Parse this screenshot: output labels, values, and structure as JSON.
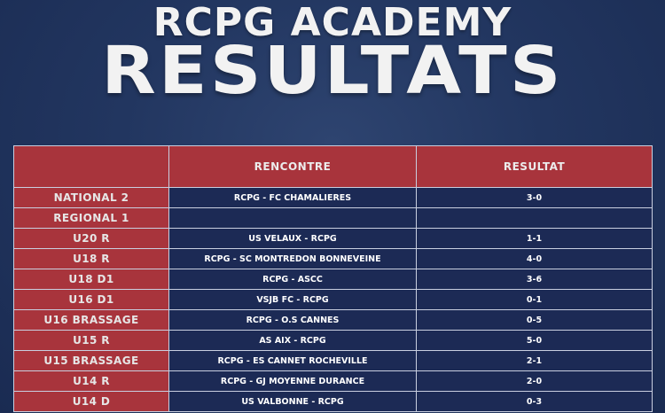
{
  "header": {
    "line1": "RCPG ACADEMY",
    "line2": "RESULTATS"
  },
  "table": {
    "columns": [
      "",
      "RENCONTRE",
      "RESULTAT"
    ],
    "rows": [
      {
        "category": "NATIONAL 2",
        "match": "RCPG - FC CHAMALIERES",
        "result": "3-0"
      },
      {
        "category": "REGIONAL 1",
        "match": "",
        "result": ""
      },
      {
        "category": "U20 R",
        "match": "US VELAUX - RCPG",
        "result": "1-1"
      },
      {
        "category": "U18 R",
        "match": "RCPG - SC MONTREDON BONNEVEINE",
        "result": "4-0"
      },
      {
        "category": "U18 D1",
        "match": "RCPG - ASCC",
        "result": "3-6"
      },
      {
        "category": "U16 D1",
        "match": "VSJB FC - RCPG",
        "result": "0-1"
      },
      {
        "category": "U16 BRASSAGE",
        "match": "RCPG - O.S CANNES",
        "result": "0-5"
      },
      {
        "category": "U15 R",
        "match": "AS AIX - RCPG",
        "result": "5-0"
      },
      {
        "category": "U15 BRASSAGE",
        "match": "RCPG - ES CANNET ROCHEVILLE",
        "result": "2-1"
      },
      {
        "category": "U14 R",
        "match": "RCPG - GJ MOYENNE DURANCE",
        "result": "2-0"
      },
      {
        "category": "U14 D",
        "match": "US VALBONNE - RCPG",
        "result": "0-3"
      }
    ]
  }
}
